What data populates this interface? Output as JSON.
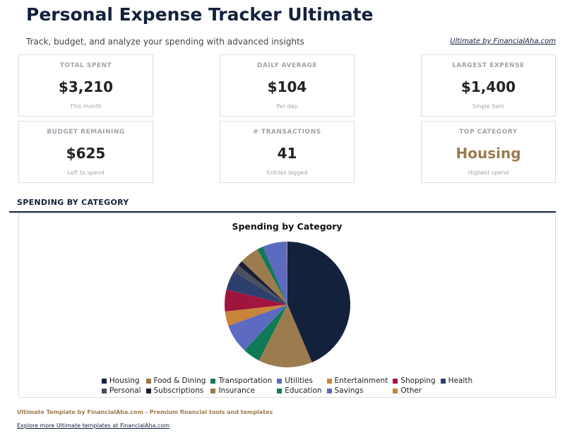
{
  "header": {
    "title": "Personal Expense Tracker Ultimate",
    "subtitle": "Track, budget, and analyze your spending with advanced insights",
    "link": "Ultimate by FinancialAha.com"
  },
  "cards": [
    {
      "label": "TOTAL SPENT",
      "value": "$3,210",
      "note": "This month"
    },
    {
      "label": "DAILY AVERAGE",
      "value": "$104",
      "note": "Per day"
    },
    {
      "label": "LARGEST EXPENSE",
      "value": "$1,400",
      "note": "Single item"
    },
    {
      "label": "BUDGET REMAINING",
      "value": "$625",
      "note": "Left to spend"
    },
    {
      "label": "# TRANSACTIONS",
      "value": "41",
      "note": "Entries logged"
    },
    {
      "label": "TOP CATEGORY",
      "value": "Housing",
      "note": "Highest spend",
      "color": "#9c7b4f"
    }
  ],
  "section_title": "SPENDING BY CATEGORY",
  "chart_data": {
    "type": "pie",
    "title": "Spending by Category",
    "legend": "bottom",
    "categories": [
      "Housing",
      "Food & Dining",
      "Transportation",
      "Utilities",
      "Entertainment",
      "Shopping",
      "Health",
      "Personal",
      "Subscriptions",
      "Insurance",
      "Education",
      "Savings",
      "Other"
    ],
    "values": [
      1400,
      445,
      145,
      240,
      120,
      180,
      160,
      60,
      45,
      160,
      50,
      200,
      5
    ],
    "colors": [
      "#14213d",
      "#9c7b4f",
      "#0f7a55",
      "#5c6bc0",
      "#c8843a",
      "#a0153e",
      "#2e3f6e",
      "#4a5060",
      "#1a1f33",
      "#9c7b4f",
      "#0f7a55",
      "#5c6bc0",
      "#c8843a"
    ]
  },
  "footer": {
    "brand": "Ultimate Template by FinancialAha.com - Premium financial tools and templates",
    "link": "Explore more Ultimate templates at FinancialAha.com"
  }
}
